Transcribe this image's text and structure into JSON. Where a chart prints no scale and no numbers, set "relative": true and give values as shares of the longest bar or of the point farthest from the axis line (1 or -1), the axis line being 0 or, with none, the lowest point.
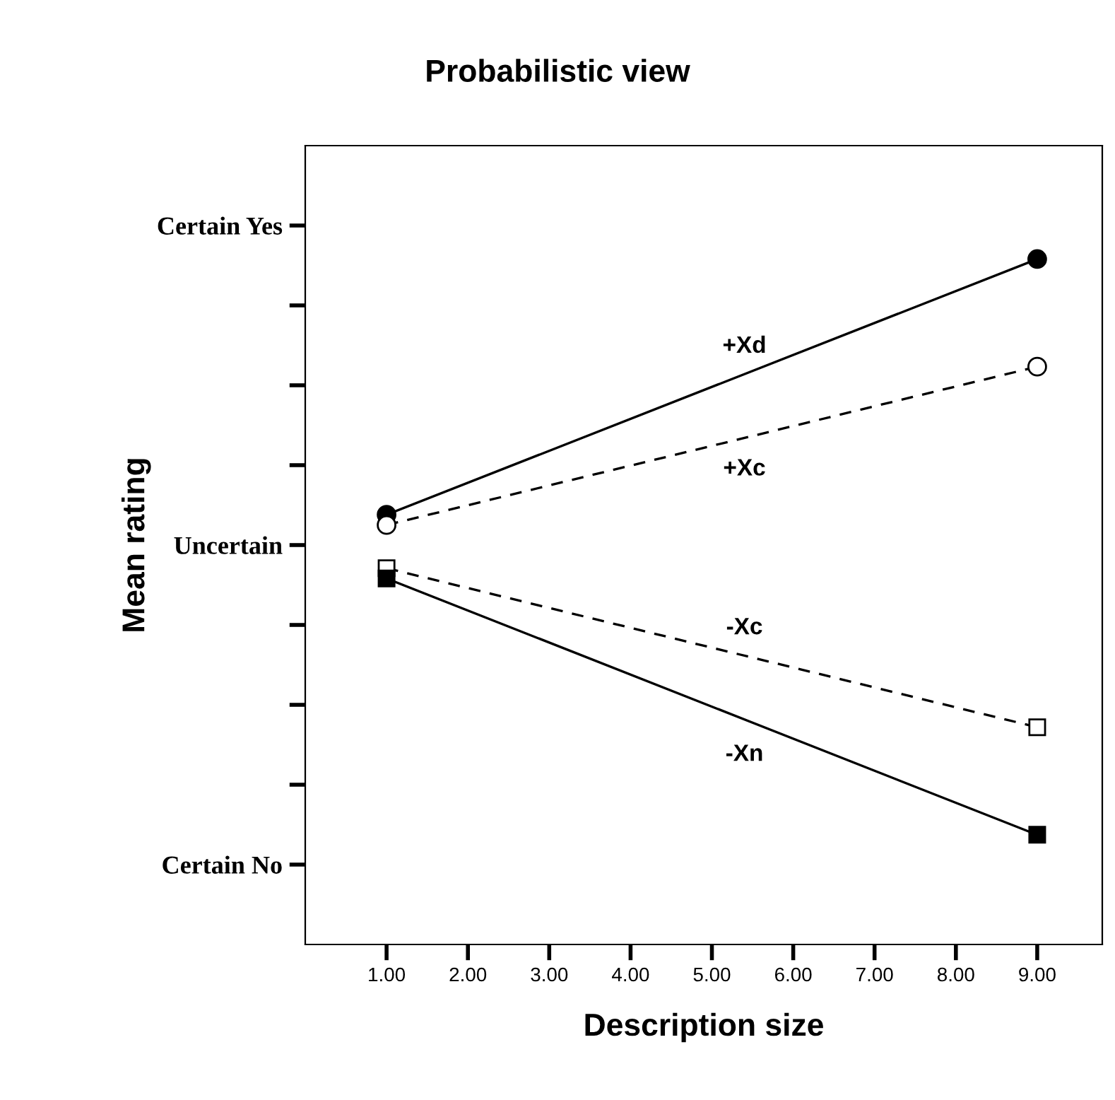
{
  "chart_data": {
    "type": "line",
    "title": "Probabilistic view",
    "xlabel": "Description size",
    "ylabel": "Mean rating",
    "xlim": [
      0,
      9.8
    ],
    "xticks": [
      {
        "value": 1,
        "label": "1.00"
      },
      {
        "value": 2,
        "label": "2.00"
      },
      {
        "value": 3,
        "label": "3.00"
      },
      {
        "value": 4,
        "label": "4.00"
      },
      {
        "value": 5,
        "label": "5.00"
      },
      {
        "value": 6,
        "label": "6.00"
      },
      {
        "value": 7,
        "label": "7.00"
      },
      {
        "value": 8,
        "label": "8.00"
      },
      {
        "value": 9,
        "label": "9.00"
      }
    ],
    "relative": true,
    "annotations": [
      "Certain No",
      "Uncertain",
      "Certain Yes"
    ],
    "x": [
      1,
      9
    ],
    "grid": false,
    "legend": false,
    "series": [
      {
        "name": "+Xd",
        "color": "#000000",
        "values": [
          0.627,
          1
        ],
        "marker": "circle",
        "line_style": "solid"
      },
      {
        "name": "+Xc",
        "color": "#000000",
        "values": [
          0.612,
          0.843
        ],
        "marker": "circle",
        "line_style": "dashed"
      },
      {
        "name": "-Xc",
        "color": "#000000",
        "values": [
          0.549,
          0.317
        ],
        "marker": "square",
        "line_style": "dashed"
      },
      {
        "name": "-Xn",
        "color": "#000000",
        "values": [
          0.534,
          0.16
        ],
        "marker": "square",
        "line_style": "solid"
      }
    ]
  }
}
